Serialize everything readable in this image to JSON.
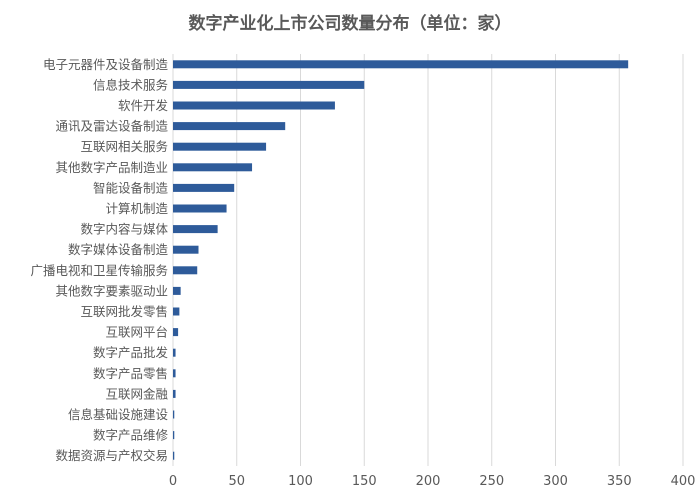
{
  "chart_data": {
    "type": "bar",
    "orientation": "horizontal",
    "title": "数字产业化上市公司数量分布（单位：家）",
    "categories": [
      "电子元器件及设备制造",
      "信息技术服务",
      "软件开发",
      "通讯及雷达设备制造",
      "互联网相关服务",
      "其他数字产品制造业",
      "智能设备制造",
      "计算机制造",
      "数字内容与媒体",
      "数字媒体设备制造",
      "广播电视和卫星传输服务",
      "其他数字要素驱动业",
      "互联网批发零售",
      "互联网平台",
      "数字产品批发",
      "数字产品零售",
      "互联网金融",
      "信息基础设施建设",
      "数字产品维修",
      "数据资源与产权交易"
    ],
    "values": [
      357,
      150,
      127,
      88,
      73,
      62,
      48,
      42,
      35,
      20,
      19,
      6,
      5,
      4,
      2,
      2,
      2,
      1,
      1,
      1
    ],
    "xlim": [
      0,
      400
    ],
    "xticks": [
      "0",
      "50",
      "100",
      "150",
      "200",
      "250",
      "300",
      "350",
      "400"
    ],
    "xlabel": "",
    "ylabel": "",
    "grid": true,
    "bar_color": "#2E5B9A",
    "grid_color": "#D9D9D9",
    "text_color": "#595959"
  }
}
